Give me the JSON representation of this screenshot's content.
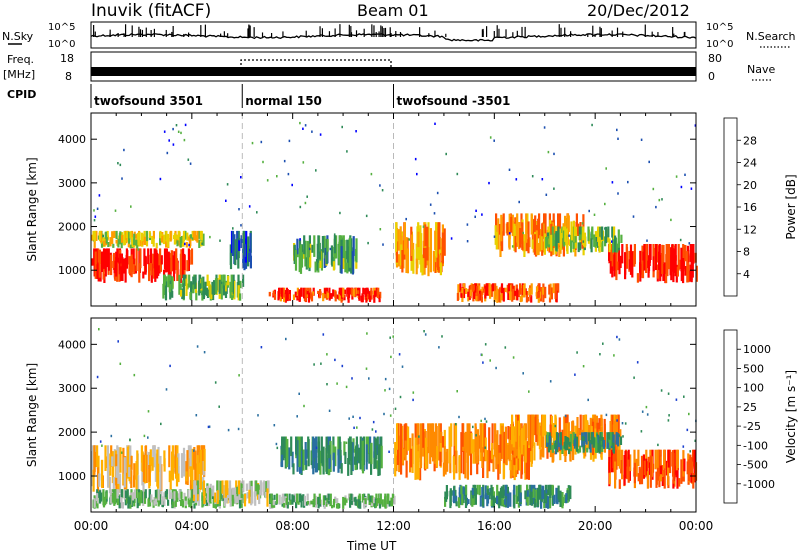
{
  "header": {
    "station": "Inuvik (fitACF)",
    "beam": "Beam 01",
    "date": "20/Dec/2012"
  },
  "summary_panels": {
    "sky_label": "N.Sky",
    "search_label": "N.Search",
    "sky_ticks": [
      "10^5",
      "10^0"
    ],
    "search_ticks": [
      "10^5",
      "10^0"
    ],
    "freq_label_1": "Freq.",
    "freq_label_2": "[MHz]",
    "freq_ticks": [
      "18",
      "8"
    ],
    "nave_label": "Nave",
    "nave_ticks": [
      "80",
      "0"
    ],
    "cpid_label": "CPID",
    "cpid_segments": [
      {
        "name": "twofsound 3501",
        "start_hour": 0,
        "end_hour": 6
      },
      {
        "name": "normal 150",
        "start_hour": 6,
        "end_hour": 12
      },
      {
        "name": "twofsound -3501",
        "start_hour": 12,
        "end_hour": 24
      }
    ]
  },
  "colors": {
    "power_scale": [
      "#0000ff",
      "#1c4fb0",
      "#2e8a57",
      "#55b040",
      "#e8d000",
      "#ff9d00",
      "#ff5000",
      "#ff0000"
    ],
    "velocity_scale": [
      "#1a3fcf",
      "#2a6fa0",
      "#2e8a57",
      "#55b040",
      "#c0c0c0",
      "#ffb000",
      "#ff8a00",
      "#ff5000",
      "#ff0000"
    ]
  },
  "chart_data": [
    {
      "type": "heatmap",
      "name": "power",
      "ylabel": "Slant Range [km]",
      "yticks": [
        1000,
        2000,
        3000,
        4000
      ],
      "ylim": [
        180,
        4600
      ],
      "xlim": [
        0,
        24
      ],
      "colorbar_label": "Power [dB]",
      "colorbar_ticks": [
        "4",
        "8",
        "12",
        "16",
        "20",
        "24",
        "28"
      ],
      "colorbar_range": [
        0,
        32
      ],
      "regions": [
        {
          "x": [
            0,
            4.0
          ],
          "y": [
            700,
            1500
          ],
          "level": 29
        },
        {
          "x": [
            0,
            4.5
          ],
          "y": [
            1500,
            1900
          ],
          "level": 18
        },
        {
          "x": [
            2.8,
            6.0
          ],
          "y": [
            300,
            900
          ],
          "level": 13
        },
        {
          "x": [
            5.5,
            6.3
          ],
          "y": [
            1000,
            1900
          ],
          "level": 8
        },
        {
          "x": [
            7.0,
            11.5
          ],
          "y": [
            250,
            600
          ],
          "level": 28
        },
        {
          "x": [
            8.0,
            10.5
          ],
          "y": [
            900,
            1800
          ],
          "level": 12
        },
        {
          "x": [
            12.0,
            14.0
          ],
          "y": [
            800,
            2100
          ],
          "level": 22
        },
        {
          "x": [
            14.5,
            18.5
          ],
          "y": [
            250,
            700
          ],
          "level": 26
        },
        {
          "x": [
            16.0,
            19.5
          ],
          "y": [
            1300,
            2300
          ],
          "level": 23
        },
        {
          "x": [
            20.5,
            24
          ],
          "y": [
            700,
            1600
          ],
          "level": 29
        },
        {
          "x": [
            18.0,
            21.0
          ],
          "y": [
            1400,
            2000
          ],
          "level": 15
        }
      ]
    },
    {
      "type": "heatmap",
      "name": "velocity",
      "ylabel": "Slant Range [km]",
      "yticks": [
        1000,
        2000,
        3000,
        4000
      ],
      "ylim": [
        180,
        4600
      ],
      "xlim": [
        0,
        24
      ],
      "xlabel": "Time UT",
      "xticks": [
        "00:00",
        "04:00",
        "08:00",
        "12:00",
        "16:00",
        "20:00",
        "00:00"
      ],
      "colorbar_label": "Velocity [m s⁻¹]",
      "colorbar_ticks": [
        "1000",
        "500",
        "100",
        "25",
        "-25",
        "-100",
        "-500",
        "-1000"
      ],
      "regions": [
        {
          "x": [
            0,
            4.5
          ],
          "y": [
            600,
            1700
          ],
          "class": 5
        },
        {
          "x": [
            0,
            6
          ],
          "y": [
            250,
            700
          ],
          "class": 3
        },
        {
          "x": [
            4.0,
            7.0
          ],
          "y": [
            300,
            900
          ],
          "class": 4
        },
        {
          "x": [
            7.5,
            11.5
          ],
          "y": [
            1000,
            1900
          ],
          "class": 2
        },
        {
          "x": [
            7.0,
            12.0
          ],
          "y": [
            250,
            600
          ],
          "class": 3
        },
        {
          "x": [
            12.0,
            17.5
          ],
          "y": [
            900,
            2200
          ],
          "class": 6
        },
        {
          "x": [
            14.0,
            19.0
          ],
          "y": [
            250,
            800
          ],
          "class": 2
        },
        {
          "x": [
            16.5,
            21.0
          ],
          "y": [
            1300,
            2400
          ],
          "class": 6
        },
        {
          "x": [
            20.5,
            24
          ],
          "y": [
            700,
            1600
          ],
          "class": 7
        },
        {
          "x": [
            18.0,
            21.0
          ],
          "y": [
            1500,
            2000
          ],
          "class": 2
        }
      ]
    }
  ]
}
